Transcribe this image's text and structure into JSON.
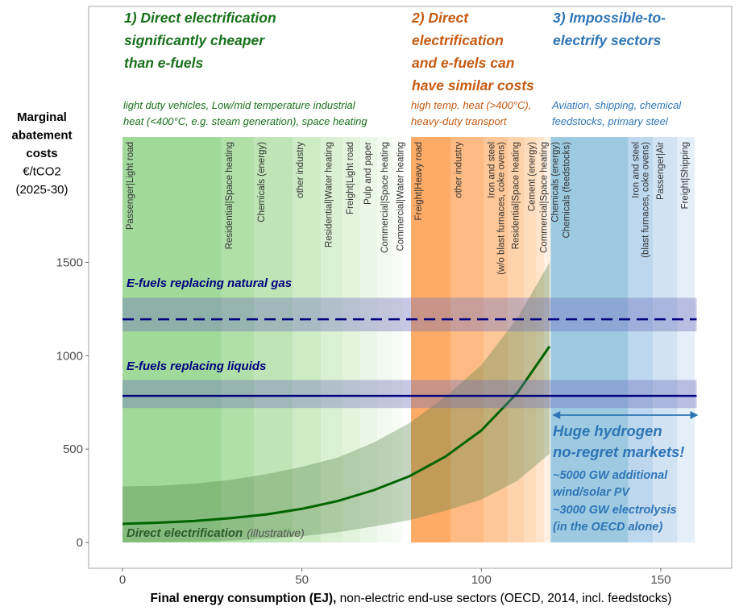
{
  "chart_data": {
    "type": "area",
    "xlabel_bold": "Final energy consumption  (EJ),",
    "xlabel_rest": " non-electric end-use sectors (OECD, 2014, incl. feedstocks)",
    "ylabel": [
      "Marginal",
      "abatement",
      "costs",
      "€/tCO2",
      "(2025-30)"
    ],
    "xlim": [
      0,
      160
    ],
    "ylim": [
      0,
      1600
    ],
    "x_ticks": [
      0,
      50,
      100,
      150
    ],
    "y_ticks": [
      0,
      500,
      1000,
      1500
    ],
    "grid": false,
    "groups": [
      {
        "title": [
          "1) Direct electrification",
          "significantly cheaper",
          "than e-fuels"
        ],
        "subtitle": [
          "light duty vehicles, Low/mid temperature industrial",
          "heat (<400°C, e.g. steam generation), space heating"
        ],
        "color": "#17701a"
      },
      {
        "title": [
          "2) Direct",
          "electrification",
          "and e-fuels can",
          "have similar costs"
        ],
        "subtitle": [
          "high temp. heat (>400°C),",
          "heavy-duty transport"
        ],
        "color": "#c55a11"
      },
      {
        "title": [
          "3) Impossible-to-",
          "electrify sectors"
        ],
        "subtitle": [
          "Aviation, shipping, chemical",
          "feedstocks, primary steel"
        ],
        "color": "#2e75b6"
      }
    ],
    "sectors": [
      {
        "label": [
          "Passenger|Light road"
        ],
        "x0": 0,
        "x1": 27.6,
        "color": "#a1d99b"
      },
      {
        "label": [
          "Residential|Space heating"
        ],
        "x0": 27.6,
        "x1": 36.6,
        "color": "#b0dfa8"
      },
      {
        "label": [
          "Chemicals (energy)"
        ],
        "x0": 36.6,
        "x1": 47.4,
        "color": "#bfe5b6"
      },
      {
        "label": [
          "other industry"
        ],
        "x0": 47.4,
        "x1": 55.3,
        "color": "#cdebc5"
      },
      {
        "label": [
          "Residential|Water heating"
        ],
        "x0": 55.3,
        "x1": 61.3,
        "color": "#daf0d3"
      },
      {
        "label": [
          "Freight|Light road"
        ],
        "x0": 61.3,
        "x1": 66.3,
        "color": "#e3f4dd"
      },
      {
        "label": [
          "Pulp and paper"
        ],
        "x0": 66.3,
        "x1": 71.0,
        "color": "#ebf7e6"
      },
      {
        "label": [
          "Commercial|Space heating"
        ],
        "x0": 71.0,
        "x1": 75.3,
        "color": "#f2faef"
      },
      {
        "label": [
          "Commercial|Water heating"
        ],
        "x0": 75.3,
        "x1": 78.0,
        "color": "#f8fcf6"
      },
      {
        "label": [
          "Freight|Heavy road"
        ],
        "x0": 80.4,
        "x1": 91.5,
        "color": "#fdab67"
      },
      {
        "label": [
          "other industry"
        ],
        "x0": 91.5,
        "x1": 100.7,
        "color": "#fdbb83"
      },
      {
        "label": [
          "Iron and steel",
          "(w/o blast furnaces, coke ovens)"
        ],
        "x0": 100.7,
        "x1": 107.4,
        "color": "#fdc797"
      },
      {
        "label": [
          "Residential|Space heating"
        ],
        "x0": 107.4,
        "x1": 111.9,
        "color": "#fed3ab"
      },
      {
        "label": [
          "Cement (energy)"
        ],
        "x0": 111.9,
        "x1": 115.3,
        "color": "#fedcbc"
      },
      {
        "label": [
          "Commercial|Space heating"
        ],
        "x0": 115.3,
        "x1": 117.5,
        "color": "#fee5cc"
      },
      {
        "label": [
          "Chemicals (energy)"
        ],
        "x0": 117.5,
        "x1": 119.3,
        "color": "#fff0e3"
      },
      {
        "label": [
          "Chemicals (feedstocks)"
        ],
        "x0": 119.3,
        "x1": 140.9,
        "color": "#9ecae1"
      },
      {
        "label": [
          "Iron and steel",
          "(blast furnaces, coke ovens)"
        ],
        "x0": 140.9,
        "x1": 147.8,
        "color": "#bdd7ee"
      },
      {
        "label": [
          "Passenger|Air"
        ],
        "x0": 147.8,
        "x1": 154.6,
        "color": "#d1e3f3"
      },
      {
        "label": [
          "Freight|Shipping"
        ],
        "x0": 154.6,
        "x1": 159.5,
        "color": "#e4eff9"
      }
    ],
    "efuels": [
      {
        "name": "E-fuels replacing natural gas",
        "value": 1195,
        "low": 1130,
        "high": 1310,
        "style": "dashed"
      },
      {
        "name": "E-fuels replacing liquids",
        "value": 785,
        "low": 720,
        "high": 870,
        "style": "solid"
      }
    ],
    "efuel_color": "#00007f",
    "direct_electrification": {
      "name": "Direct electrification",
      "note": "(illustrative)",
      "color": "#006400",
      "x": [
        0,
        10,
        20,
        30,
        40,
        50,
        60,
        70,
        80,
        90,
        100,
        110,
        119
      ],
      "y": [
        100,
        106,
        115,
        130,
        150,
        180,
        222,
        280,
        355,
        460,
        600,
        800,
        1050
      ],
      "upper": [
        300,
        303,
        315,
        335,
        365,
        405,
        455,
        535,
        640,
        780,
        950,
        1200,
        1500
      ],
      "lower": [
        0,
        2,
        5,
        10,
        20,
        33,
        55,
        85,
        120,
        170,
        230,
        330,
        474
      ]
    },
    "hydrogen_annotation": {
      "x_range": [
        119.3,
        160
      ],
      "lines": [
        "Huge hydrogen",
        "no-regret markets!",
        "~5000 GW additional",
        "wind/solar PV",
        "~3000 GW electrolysis",
        "(in the OECD alone)"
      ],
      "color": "#2e75b6"
    }
  }
}
